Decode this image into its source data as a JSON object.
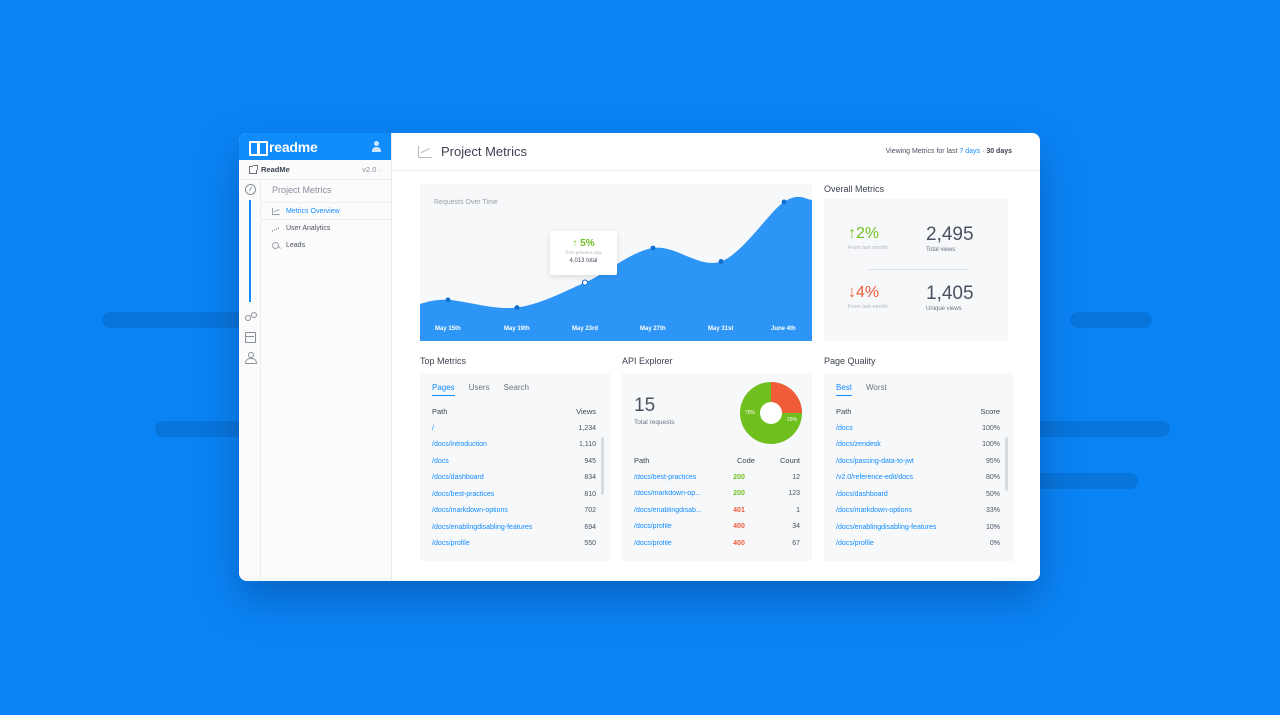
{
  "colors": {
    "accent": "#118cfd",
    "success": "#6fbf1f",
    "danger": "#f05b3a",
    "background": "#0a84f5"
  },
  "sidebar": {
    "brand": "readme",
    "project_name": "ReadMe",
    "project_version": "v2.0 ·",
    "section_title": "Project Metrics",
    "items": [
      {
        "label": "Metrics Overview",
        "icon": "line-chart-icon"
      },
      {
        "label": "User Analytics",
        "icon": "bar-chart-icon"
      },
      {
        "label": "Leads",
        "icon": "search-icon"
      }
    ]
  },
  "header": {
    "title": "Project Metrics",
    "viewing_prefix": "Viewing Metrics for last",
    "option_7": "7 days",
    "separator": "·",
    "option_30": "30 days"
  },
  "chart_data": {
    "type": "area",
    "title": "Requests Over Time",
    "categories": [
      "May 15th",
      "May 19th",
      "May 23rd",
      "May 27th",
      "May 31st",
      "June 4th"
    ],
    "x": [
      "May 15th",
      "May 19th",
      "May 23rd",
      "May 27th",
      "May 31st",
      "June 4th"
    ],
    "series": [
      {
        "values": [
          2300,
          1900,
          3200,
          5000,
          4300,
          7400
        ]
      }
    ],
    "tooltip": {
      "change": "5%",
      "sub": "from previous day",
      "total": "4,013 total"
    },
    "grid": false,
    "legend": "none"
  },
  "overall": {
    "title": "Overall Metrics",
    "stats": [
      {
        "pct": "2%",
        "direction": "up",
        "sub": "From last month",
        "value": "2,495",
        "label": "Total views"
      },
      {
        "pct": "4%",
        "direction": "down",
        "sub": "From last month",
        "value": "1,405",
        "label": "Unique views"
      }
    ]
  },
  "top_metrics": {
    "title": "Top Metrics",
    "tabs": [
      "Pages",
      "Users",
      "Search"
    ],
    "col_path": "Path",
    "col_views": "Views",
    "rows": [
      {
        "path": "/",
        "views": "1,234"
      },
      {
        "path": "/docs/introduction",
        "views": "1,110"
      },
      {
        "path": "/docs",
        "views": "945"
      },
      {
        "path": "/docs/dashboard",
        "views": "834"
      },
      {
        "path": "/docs/best-practices",
        "views": "810"
      },
      {
        "path": "/docs/markdown-options",
        "views": "702"
      },
      {
        "path": "/docs/enablingdisabling-features",
        "views": "694"
      },
      {
        "path": "/docs/profile",
        "views": "550"
      }
    ]
  },
  "api_explorer": {
    "title": "API Explorer",
    "total": "15",
    "total_label": "Total requests",
    "pie": {
      "success_pct": 75,
      "error_pct": 25,
      "success_label": "75%",
      "error_label": "25%"
    },
    "col_path": "Path",
    "col_code": "Code",
    "col_count": "Count",
    "rows": [
      {
        "path": "/docs/best-practices",
        "code": "200",
        "count": "12"
      },
      {
        "path": "/docs/markdown-op...",
        "code": "200",
        "count": "123"
      },
      {
        "path": "/docs/enablingdisab...",
        "code": "401",
        "count": "1"
      },
      {
        "path": "/docs/profile",
        "code": "400",
        "count": "34"
      },
      {
        "path": "/docs/profile",
        "code": "400",
        "count": "67"
      }
    ]
  },
  "page_quality": {
    "title": "Page Quality",
    "tabs": [
      "Best",
      "Worst"
    ],
    "col_path": "Path",
    "col_score": "Score",
    "rows": [
      {
        "path": "/docs",
        "score": "100%"
      },
      {
        "path": "/docs/zendesk",
        "score": "100%"
      },
      {
        "path": "/docs/passing-data-to-jwt",
        "score": "95%"
      },
      {
        "path": "/v2.0/reference-edit/docs",
        "score": "80%"
      },
      {
        "path": "/docs/dashboard",
        "score": "50%"
      },
      {
        "path": "/docs/markdown-options",
        "score": "33%"
      },
      {
        "path": "/docs/enablingdisabling-features",
        "score": "10%"
      },
      {
        "path": "/docs/profile",
        "score": "0%"
      }
    ]
  }
}
